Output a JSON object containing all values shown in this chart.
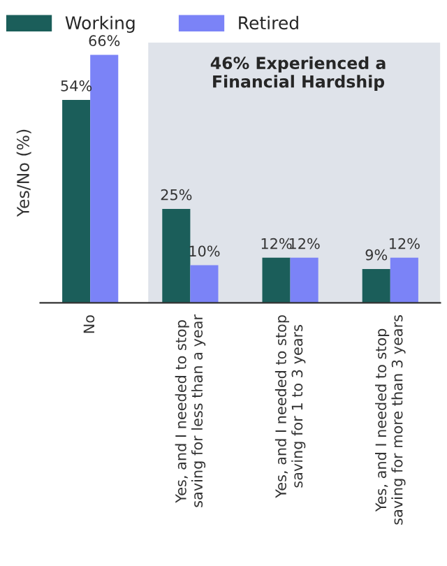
{
  "chart_data": {
    "type": "bar",
    "ylabel": "Yes/No (%)",
    "categories": [
      "No",
      "Yes, and I needed to stop\nsaving for less than a year",
      "Yes, and I needed to stop\nsaving for 1 to 3 years",
      "Yes, and I needed to stop\nsaving for more than 3 years"
    ],
    "series": [
      {
        "name": "Working",
        "color": "#1b5e5a",
        "values": [
          54,
          25,
          12,
          9
        ],
        "value_labels": [
          "54%",
          "25%",
          "12%",
          "9%"
        ]
      },
      {
        "name": "Retired",
        "color": "#7b83f7",
        "values": [
          66,
          10,
          12,
          12
        ],
        "value_labels": [
          "66%",
          "10%",
          "12%",
          "12%"
        ]
      }
    ],
    "bands": [
      {
        "axis": "x",
        "from": "Yes, and I needed to stop\nsaving for less than a year",
        "to": "Yes, and I needed to stop\nsaving for more than 3 years",
        "label": "46% Experienced a\nFinancial Hardship",
        "color": "#dfe3ea"
      }
    ],
    "legend": "top left",
    "grid": false
  }
}
